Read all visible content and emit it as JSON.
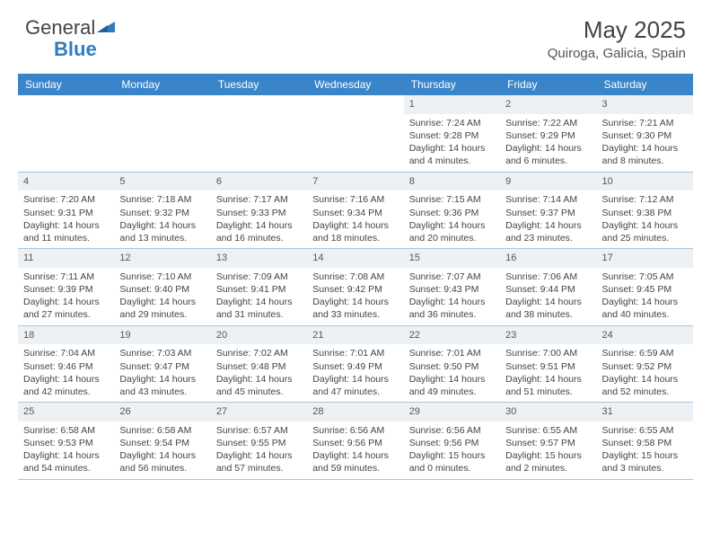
{
  "brand": {
    "part1": "General",
    "part2": "Blue"
  },
  "title": "May 2025",
  "location": "Quiroga, Galicia, Spain",
  "colors": {
    "header_bg": "#3a85c9",
    "header_text": "#ffffff",
    "daynum_bg": "#eef1f4",
    "border": "#aac4dc",
    "text": "#444444",
    "logo_blue": "#2f7dc0"
  },
  "day_labels": [
    "Sunday",
    "Monday",
    "Tuesday",
    "Wednesday",
    "Thursday",
    "Friday",
    "Saturday"
  ],
  "weeks": [
    [
      {
        "n": "",
        "sr": "",
        "ss": "",
        "dl": ""
      },
      {
        "n": "",
        "sr": "",
        "ss": "",
        "dl": ""
      },
      {
        "n": "",
        "sr": "",
        "ss": "",
        "dl": ""
      },
      {
        "n": "",
        "sr": "",
        "ss": "",
        "dl": ""
      },
      {
        "n": "1",
        "sr": "Sunrise: 7:24 AM",
        "ss": "Sunset: 9:28 PM",
        "dl": "Daylight: 14 hours and 4 minutes."
      },
      {
        "n": "2",
        "sr": "Sunrise: 7:22 AM",
        "ss": "Sunset: 9:29 PM",
        "dl": "Daylight: 14 hours and 6 minutes."
      },
      {
        "n": "3",
        "sr": "Sunrise: 7:21 AM",
        "ss": "Sunset: 9:30 PM",
        "dl": "Daylight: 14 hours and 8 minutes."
      }
    ],
    [
      {
        "n": "4",
        "sr": "Sunrise: 7:20 AM",
        "ss": "Sunset: 9:31 PM",
        "dl": "Daylight: 14 hours and 11 minutes."
      },
      {
        "n": "5",
        "sr": "Sunrise: 7:18 AM",
        "ss": "Sunset: 9:32 PM",
        "dl": "Daylight: 14 hours and 13 minutes."
      },
      {
        "n": "6",
        "sr": "Sunrise: 7:17 AM",
        "ss": "Sunset: 9:33 PM",
        "dl": "Daylight: 14 hours and 16 minutes."
      },
      {
        "n": "7",
        "sr": "Sunrise: 7:16 AM",
        "ss": "Sunset: 9:34 PM",
        "dl": "Daylight: 14 hours and 18 minutes."
      },
      {
        "n": "8",
        "sr": "Sunrise: 7:15 AM",
        "ss": "Sunset: 9:36 PM",
        "dl": "Daylight: 14 hours and 20 minutes."
      },
      {
        "n": "9",
        "sr": "Sunrise: 7:14 AM",
        "ss": "Sunset: 9:37 PM",
        "dl": "Daylight: 14 hours and 23 minutes."
      },
      {
        "n": "10",
        "sr": "Sunrise: 7:12 AM",
        "ss": "Sunset: 9:38 PM",
        "dl": "Daylight: 14 hours and 25 minutes."
      }
    ],
    [
      {
        "n": "11",
        "sr": "Sunrise: 7:11 AM",
        "ss": "Sunset: 9:39 PM",
        "dl": "Daylight: 14 hours and 27 minutes."
      },
      {
        "n": "12",
        "sr": "Sunrise: 7:10 AM",
        "ss": "Sunset: 9:40 PM",
        "dl": "Daylight: 14 hours and 29 minutes."
      },
      {
        "n": "13",
        "sr": "Sunrise: 7:09 AM",
        "ss": "Sunset: 9:41 PM",
        "dl": "Daylight: 14 hours and 31 minutes."
      },
      {
        "n": "14",
        "sr": "Sunrise: 7:08 AM",
        "ss": "Sunset: 9:42 PM",
        "dl": "Daylight: 14 hours and 33 minutes."
      },
      {
        "n": "15",
        "sr": "Sunrise: 7:07 AM",
        "ss": "Sunset: 9:43 PM",
        "dl": "Daylight: 14 hours and 36 minutes."
      },
      {
        "n": "16",
        "sr": "Sunrise: 7:06 AM",
        "ss": "Sunset: 9:44 PM",
        "dl": "Daylight: 14 hours and 38 minutes."
      },
      {
        "n": "17",
        "sr": "Sunrise: 7:05 AM",
        "ss": "Sunset: 9:45 PM",
        "dl": "Daylight: 14 hours and 40 minutes."
      }
    ],
    [
      {
        "n": "18",
        "sr": "Sunrise: 7:04 AM",
        "ss": "Sunset: 9:46 PM",
        "dl": "Daylight: 14 hours and 42 minutes."
      },
      {
        "n": "19",
        "sr": "Sunrise: 7:03 AM",
        "ss": "Sunset: 9:47 PM",
        "dl": "Daylight: 14 hours and 43 minutes."
      },
      {
        "n": "20",
        "sr": "Sunrise: 7:02 AM",
        "ss": "Sunset: 9:48 PM",
        "dl": "Daylight: 14 hours and 45 minutes."
      },
      {
        "n": "21",
        "sr": "Sunrise: 7:01 AM",
        "ss": "Sunset: 9:49 PM",
        "dl": "Daylight: 14 hours and 47 minutes."
      },
      {
        "n": "22",
        "sr": "Sunrise: 7:01 AM",
        "ss": "Sunset: 9:50 PM",
        "dl": "Daylight: 14 hours and 49 minutes."
      },
      {
        "n": "23",
        "sr": "Sunrise: 7:00 AM",
        "ss": "Sunset: 9:51 PM",
        "dl": "Daylight: 14 hours and 51 minutes."
      },
      {
        "n": "24",
        "sr": "Sunrise: 6:59 AM",
        "ss": "Sunset: 9:52 PM",
        "dl": "Daylight: 14 hours and 52 minutes."
      }
    ],
    [
      {
        "n": "25",
        "sr": "Sunrise: 6:58 AM",
        "ss": "Sunset: 9:53 PM",
        "dl": "Daylight: 14 hours and 54 minutes."
      },
      {
        "n": "26",
        "sr": "Sunrise: 6:58 AM",
        "ss": "Sunset: 9:54 PM",
        "dl": "Daylight: 14 hours and 56 minutes."
      },
      {
        "n": "27",
        "sr": "Sunrise: 6:57 AM",
        "ss": "Sunset: 9:55 PM",
        "dl": "Daylight: 14 hours and 57 minutes."
      },
      {
        "n": "28",
        "sr": "Sunrise: 6:56 AM",
        "ss": "Sunset: 9:56 PM",
        "dl": "Daylight: 14 hours and 59 minutes."
      },
      {
        "n": "29",
        "sr": "Sunrise: 6:56 AM",
        "ss": "Sunset: 9:56 PM",
        "dl": "Daylight: 15 hours and 0 minutes."
      },
      {
        "n": "30",
        "sr": "Sunrise: 6:55 AM",
        "ss": "Sunset: 9:57 PM",
        "dl": "Daylight: 15 hours and 2 minutes."
      },
      {
        "n": "31",
        "sr": "Sunrise: 6:55 AM",
        "ss": "Sunset: 9:58 PM",
        "dl": "Daylight: 15 hours and 3 minutes."
      }
    ]
  ]
}
